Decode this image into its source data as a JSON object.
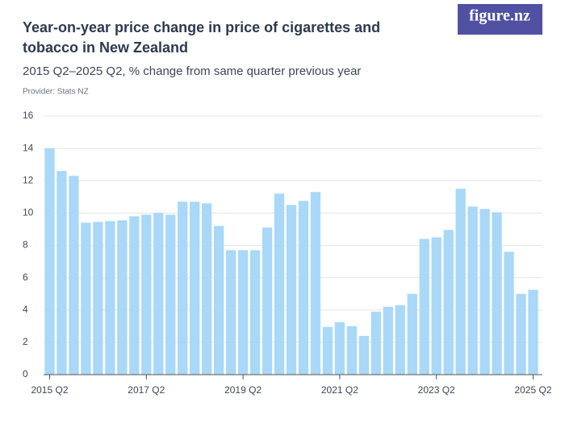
{
  "brand": "figure.nz",
  "chart_data": {
    "type": "bar",
    "title": "Year-on-year price change in price of cigarettes and tobacco in New Zealand",
    "subtitle": "2015 Q2–2025 Q2, % change from same quarter previous year",
    "provider": "Provider: Stats NZ",
    "categories": [
      "2015 Q2",
      null,
      null,
      null,
      null,
      null,
      null,
      null,
      "2017 Q2",
      null,
      null,
      null,
      null,
      null,
      null,
      null,
      "2019 Q2",
      null,
      null,
      null,
      null,
      null,
      null,
      null,
      "2021 Q2",
      null,
      null,
      null,
      null,
      null,
      null,
      null,
      "2023 Q2",
      null,
      null,
      null,
      null,
      null,
      null,
      null,
      "2025 Q2"
    ],
    "values": [
      14.0,
      12.6,
      12.3,
      9.4,
      9.45,
      9.5,
      9.55,
      9.8,
      9.9,
      10.0,
      9.9,
      10.7,
      10.7,
      10.6,
      9.2,
      7.7,
      7.7,
      7.7,
      9.1,
      11.2,
      10.5,
      10.75,
      11.3,
      2.95,
      3.25,
      3.0,
      2.4,
      3.9,
      4.2,
      4.3,
      5.0,
      8.4,
      8.5,
      8.95,
      11.5,
      10.4,
      10.25,
      10.05,
      7.6,
      5.0,
      5.25
    ],
    "color": "#a9d8f8",
    "ylim": [
      0,
      16
    ],
    "yticks": [
      0,
      2,
      4,
      6,
      8,
      10,
      12,
      14,
      16
    ],
    "grid": true
  }
}
